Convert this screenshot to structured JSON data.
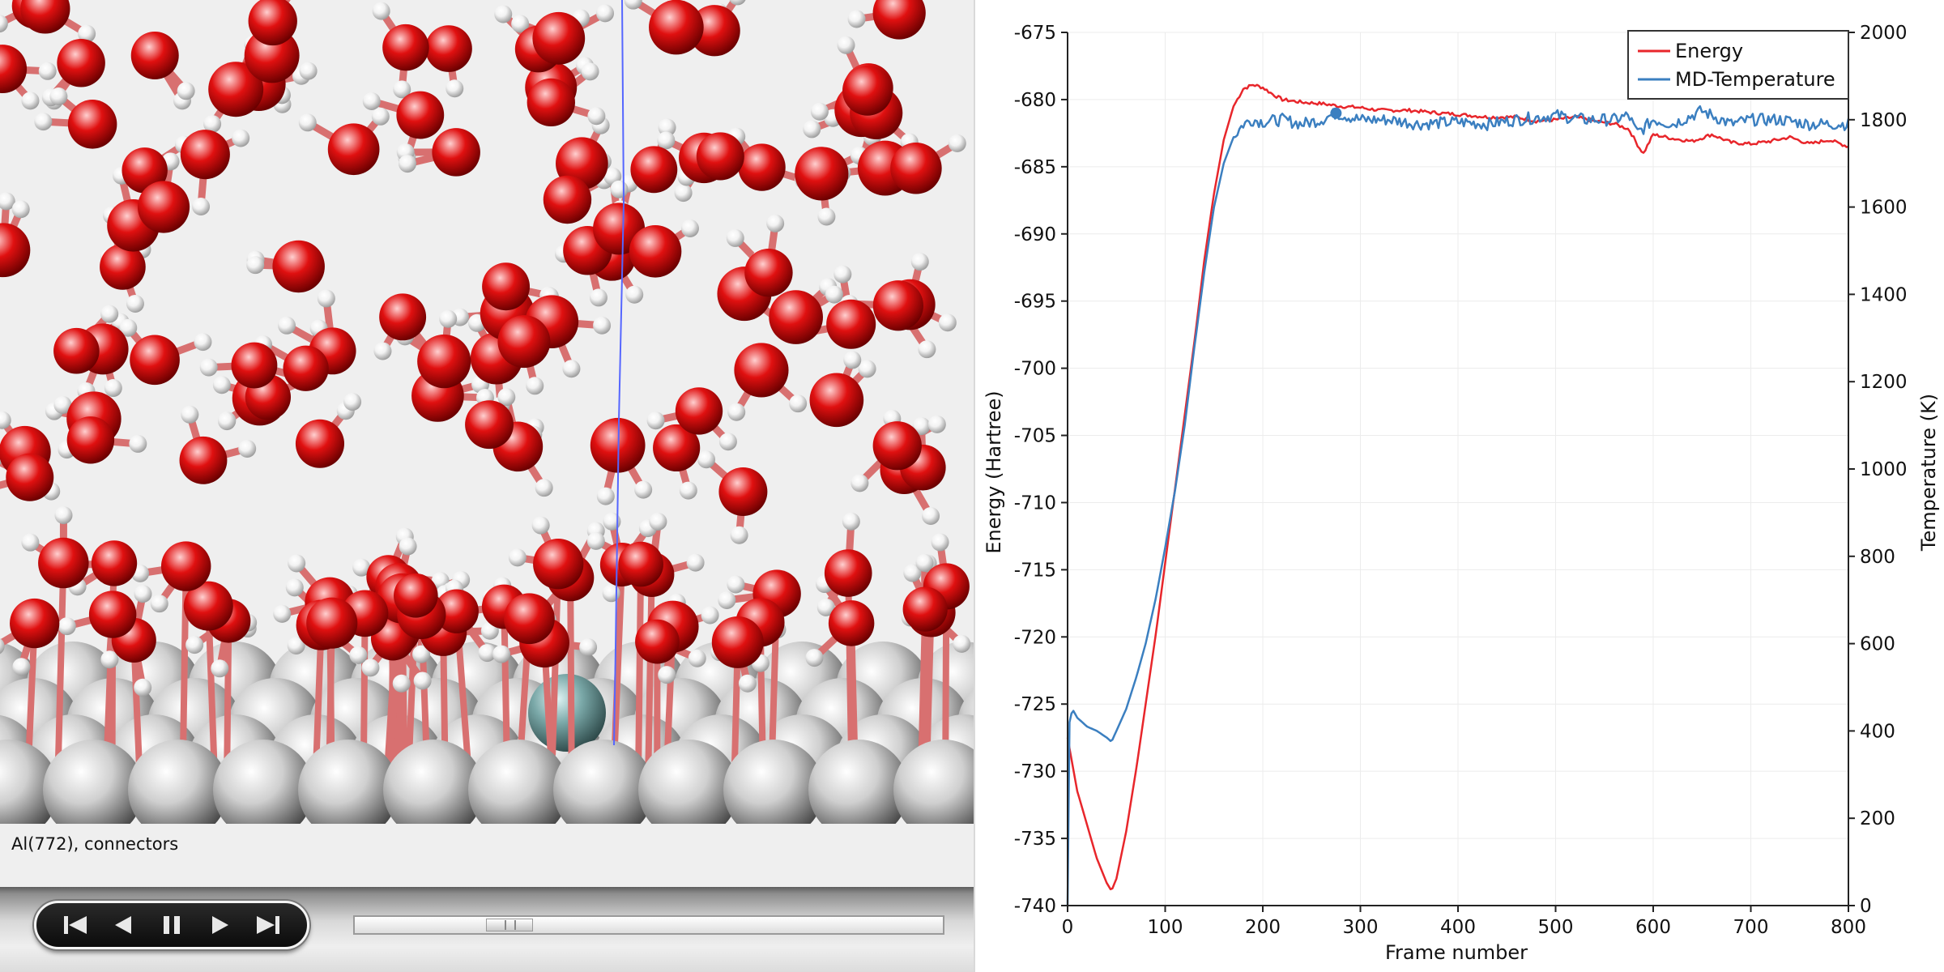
{
  "viewer": {
    "status_text": "Al(772),  connectors",
    "controls": [
      {
        "name": "first-frame-button",
        "icon": "skip-to-start-icon"
      },
      {
        "name": "previous-frame-button",
        "icon": "step-back-icon"
      },
      {
        "name": "pause-button",
        "icon": "pause-icon"
      },
      {
        "name": "next-frame-button",
        "icon": "step-forward-icon"
      },
      {
        "name": "last-frame-button",
        "icon": "skip-to-end-icon"
      }
    ],
    "scrubber_position": 0.24,
    "colors": {
      "oxygen": "#e01010",
      "hydrogen": "#ffffff",
      "aluminum": "#cfcfcf",
      "bond": "#d87070"
    }
  },
  "chart_data": {
    "type": "line",
    "xlabel": "Frame number",
    "ylabel": "Energy (Hartree)",
    "y2label": "Temperature (K)",
    "xlim": [
      0,
      800
    ],
    "ylim": [
      -740,
      -675
    ],
    "y2lim": [
      0,
      2000
    ],
    "x_ticks": [
      "0",
      "100",
      "200",
      "300",
      "400",
      "500",
      "600",
      "700",
      "800"
    ],
    "y_ticks": [
      "-675",
      "-680",
      "-685",
      "-690",
      "-695",
      "-700",
      "-705",
      "-710",
      "-715",
      "-720",
      "-725",
      "-730",
      "-735",
      "-740"
    ],
    "y2_ticks": [
      "2000",
      "1800",
      "1600",
      "1400",
      "1200",
      "1000",
      "800",
      "600",
      "400",
      "200",
      "0"
    ],
    "grid": true,
    "legend_position": "top-right",
    "series": [
      {
        "name": "Energy",
        "axis": "left",
        "color": "#e8262b",
        "x": [
          0,
          10,
          20,
          30,
          40,
          45,
          50,
          60,
          70,
          80,
          90,
          100,
          110,
          120,
          130,
          140,
          150,
          160,
          170,
          180,
          190,
          200,
          210,
          220,
          240,
          260,
          280,
          300,
          320,
          350,
          380,
          400,
          430,
          460,
          480,
          500,
          520,
          540,
          560,
          575,
          585,
          590,
          600,
          620,
          640,
          660,
          680,
          700,
          720,
          740,
          760,
          780,
          800
        ],
        "y": [
          -727.5,
          -731.5,
          -734.0,
          -736.5,
          -738.3,
          -738.9,
          -738.0,
          -734.5,
          -730.0,
          -725.0,
          -720.0,
          -714.5,
          -709.0,
          -703.5,
          -698.0,
          -692.0,
          -687.0,
          -683.0,
          -680.5,
          -679.2,
          -678.9,
          -679.1,
          -679.6,
          -680.0,
          -680.2,
          -680.3,
          -680.5,
          -680.6,
          -680.8,
          -680.8,
          -681.0,
          -681.1,
          -681.3,
          -681.3,
          -681.6,
          -681.5,
          -681.3,
          -681.6,
          -681.8,
          -682.2,
          -683.5,
          -684.0,
          -682.6,
          -682.9,
          -683.1,
          -682.6,
          -683.2,
          -683.3,
          -683.1,
          -682.8,
          -683.3,
          -683.0,
          -683.5
        ]
      },
      {
        "name": "MD-Temperature",
        "axis": "right",
        "color": "#3b7fc0",
        "x": [
          0,
          2,
          5,
          10,
          20,
          30,
          40,
          45,
          50,
          60,
          70,
          80,
          90,
          100,
          110,
          120,
          130,
          140,
          150,
          160,
          170,
          180,
          190,
          200,
          220,
          240,
          260,
          275,
          300,
          330,
          360,
          400,
          430,
          460,
          500,
          530,
          560,
          575,
          583,
          590,
          600,
          620,
          650,
          680,
          700,
          730,
          760,
          800
        ],
        "y": [
          0,
          420,
          450,
          430,
          410,
          400,
          385,
          375,
          400,
          450,
          520,
          600,
          700,
          820,
          950,
          1100,
          1280,
          1450,
          1600,
          1700,
          1760,
          1790,
          1800,
          1795,
          1800,
          1790,
          1800,
          1815,
          1800,
          1800,
          1790,
          1795,
          1790,
          1800,
          1810,
          1800,
          1800,
          1810,
          1770,
          1780,
          1800,
          1790,
          1820,
          1790,
          1800,
          1800,
          1790,
          1790
        ]
      }
    ]
  }
}
